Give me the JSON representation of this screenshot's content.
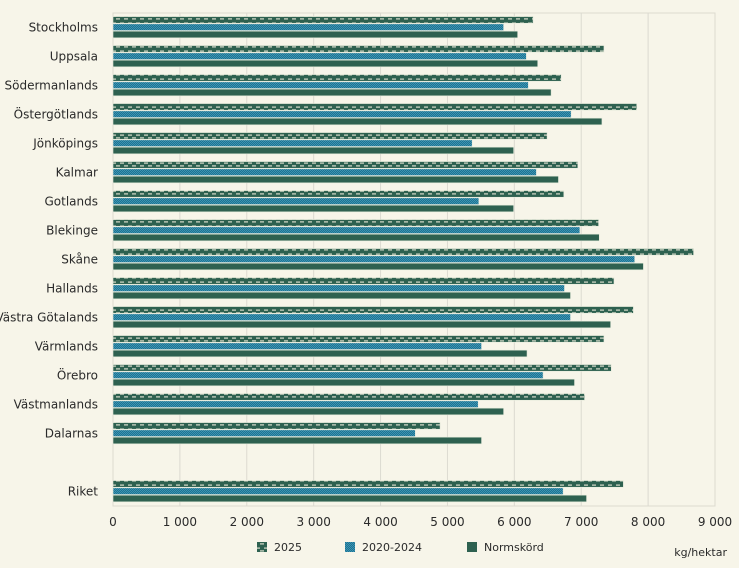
{
  "chart_data": {
    "type": "bar",
    "orientation": "horizontal",
    "categories": [
      "Stockholms",
      "Uppsala",
      "Södermanlands",
      "Östergötlands",
      "Jönköpings",
      "Kalmar",
      "Gotlands",
      "Blekinge",
      "Skåne",
      "Hallands",
      "Västra Götalands",
      "Värmlands",
      "Örebro",
      "Västmanlands",
      "Dalarnas",
      "",
      "Riket"
    ],
    "series": [
      {
        "name": "2025",
        "color": "#2e6150",
        "pattern": "dashed-stripe",
        "values": [
          6280,
          7340,
          6700,
          7830,
          6490,
          6950,
          6740,
          7260,
          8680,
          7490,
          7780,
          7340,
          7450,
          7050,
          4890,
          null,
          7630
        ]
      },
      {
        "name": "2020-2024",
        "color": "#1b7494",
        "pattern": "checkered",
        "values": [
          5840,
          6180,
          6210,
          6850,
          5370,
          6330,
          5470,
          6980,
          7800,
          6750,
          6840,
          5510,
          6430,
          5460,
          4520,
          null,
          6730
        ]
      },
      {
        "name": "Normskörd",
        "color": "#2e6150",
        "pattern": "solid",
        "values": [
          6050,
          6350,
          6550,
          7310,
          5990,
          6660,
          5990,
          7270,
          7930,
          6840,
          7440,
          6190,
          6900,
          5840,
          5510,
          null,
          7080
        ]
      }
    ],
    "xlim": [
      0,
      9000
    ],
    "xticks": [
      0,
      1000,
      2000,
      3000,
      4000,
      5000,
      6000,
      7000,
      8000,
      9000
    ],
    "xtick_labels": [
      "0",
      "1 000",
      "2 000",
      "3 000",
      "4 000",
      "5 000",
      "6 000",
      "7 000",
      "8 000",
      "9 000"
    ],
    "xlabel": "kg/hektar",
    "grid": true,
    "legend": "bottom"
  }
}
